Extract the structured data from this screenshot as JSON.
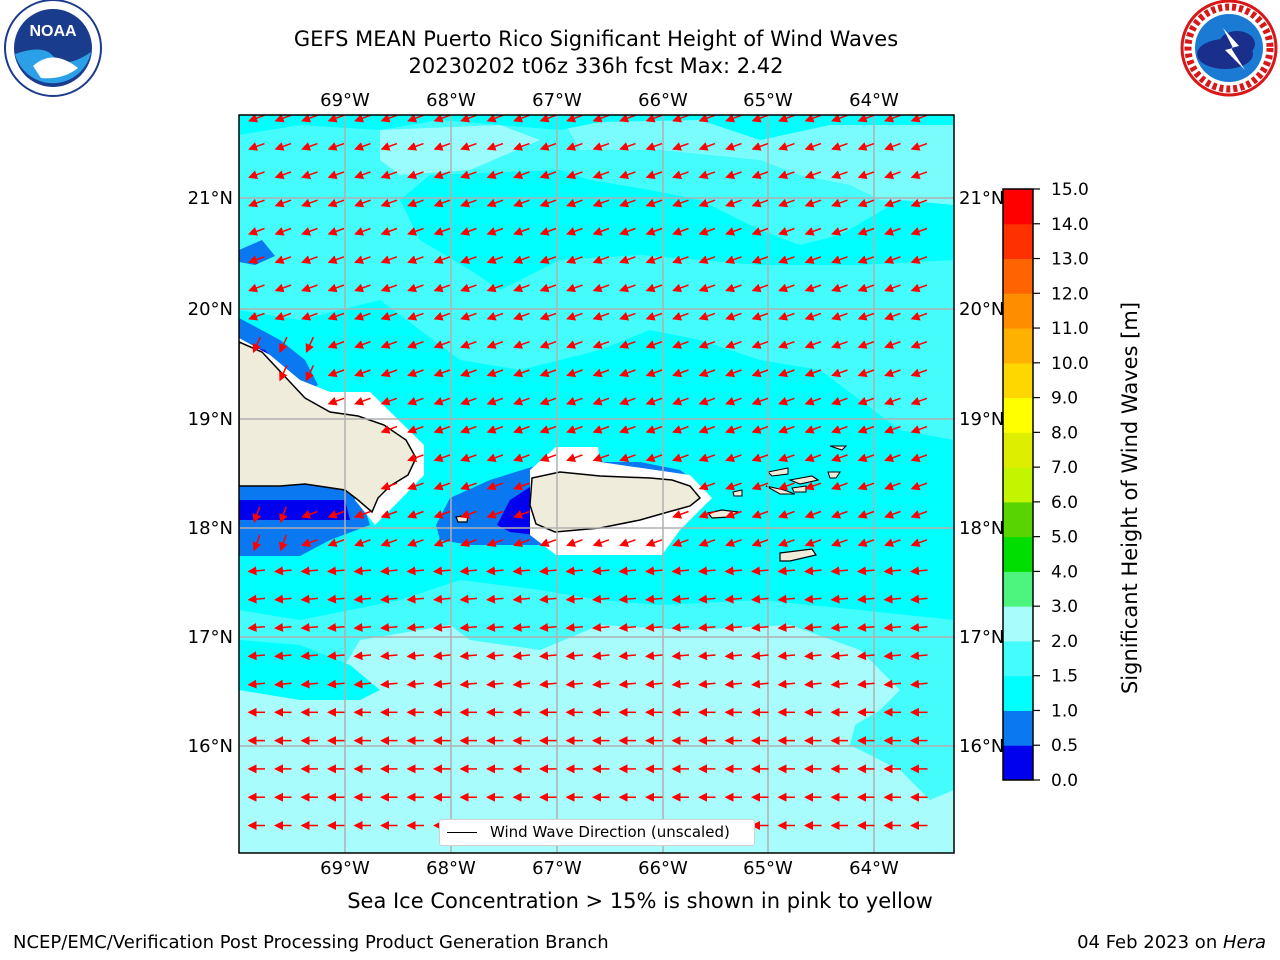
{
  "header": {
    "title_line1": "GEFS MEAN Puerto Rico Significant Height of Wind Waves",
    "title_line2": "20230202 t06z 336h fcst   Max: 2.42"
  },
  "logos": {
    "left": {
      "name": "noaa-logo",
      "text": "NOAA",
      "ring_text": "NATIONAL OCEANIC AND ATMOSPHERIC ADMINISTRATION · U.S. DEPARTMENT OF COMMERCE"
    },
    "right": {
      "name": "nws-logo",
      "ring_text": "NATIONAL WEATHER SERVICE"
    }
  },
  "map": {
    "lon_labels": [
      "69°W",
      "68°W",
      "67°W",
      "66°W",
      "65°W",
      "64°W"
    ],
    "lat_labels": [
      "21°N",
      "20°N",
      "19°N",
      "18°N",
      "17°N",
      "16°N"
    ],
    "legend_label": "Wind Wave Direction (unscaled)",
    "arrow_color": "#ff0000",
    "land_color": "#efecdc"
  },
  "colorbar": {
    "label": "Significant Height of Wind Waves [m]",
    "ticks": [
      "15.0",
      "14.0",
      "13.0",
      "12.0",
      "11.0",
      "10.0",
      "9.0",
      "8.0",
      "7.0",
      "6.0",
      "5.0",
      "4.0",
      "3.0",
      "2.0",
      "1.5",
      "1.0",
      "0.5",
      "0.0"
    ],
    "colors_bottom_to_top": [
      "#0000ee",
      "#0a78f0",
      "#00ffff",
      "#44fcfc",
      "#a9fcfc",
      "#4df57f",
      "#00dd00",
      "#58d500",
      "#c3f400",
      "#deee00",
      "#ffff00",
      "#ffd700",
      "#ffb100",
      "#ff8d00",
      "#ff6400",
      "#ff3000",
      "#ff0000"
    ]
  },
  "notes": {
    "ice": "Sea Ice Concentration > 15% is shown in pink to yellow",
    "footer_left": "NCEP/EMC/Verification Post Processing Product Generation Branch",
    "footer_right_date": "04 Feb 2023 on ",
    "footer_right_host": "Hera"
  }
}
